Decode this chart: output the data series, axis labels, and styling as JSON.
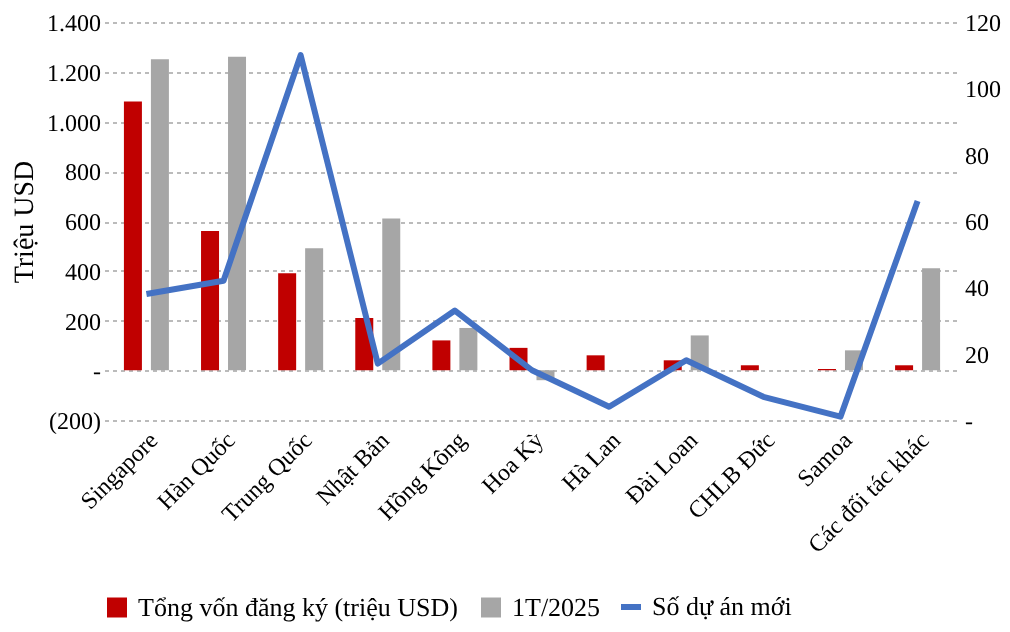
{
  "chart_data": {
    "type": "bar",
    "ylabel": "Triệu USD",
    "categories": [
      "Singapore",
      "Hàn Quốc",
      "Trung Quốc",
      "Nhật Bản",
      "Hồng Kông",
      "Hoa Kỳ",
      "Hà Lan",
      "Đài Loan",
      "CHLB Đức",
      "Samoa",
      "Các đối tác khác"
    ],
    "series": [
      {
        "name": "Tổng vốn đăng ký (triệu USD)",
        "color": "#c00000",
        "values": [
          1080,
          560,
          390,
          210,
          120,
          90,
          60,
          40,
          20,
          5,
          20
        ]
      },
      {
        "name": "1T/2025",
        "color": "#a6a6a6",
        "values": [
          1250,
          1260,
          490,
          610,
          170,
          -40,
          null,
          140,
          null,
          80,
          410
        ]
      },
      {
        "name": "Số dự án mới",
        "type": "line",
        "axis": "y2",
        "color": "#4472c4",
        "values": [
          38,
          42,
          110,
          17,
          33,
          15,
          4,
          18,
          7,
          1,
          66
        ]
      }
    ],
    "ylim": [
      -200,
      1400
    ],
    "yticks": [
      {
        "value": -200,
        "label": "(200)"
      },
      {
        "value": 0,
        "label": "-"
      },
      200,
      400,
      600,
      800,
      {
        "value": 1000,
        "label": "1.000"
      },
      {
        "value": 1200,
        "label": "1.200"
      },
      {
        "value": 1400,
        "label": "1.400"
      }
    ],
    "y2lim": [
      0,
      120
    ],
    "y2ticks": [
      {
        "value": 0,
        "label": "-"
      },
      20,
      40,
      60,
      80,
      100,
      120
    ],
    "grid": "y",
    "legend": "bottom"
  }
}
